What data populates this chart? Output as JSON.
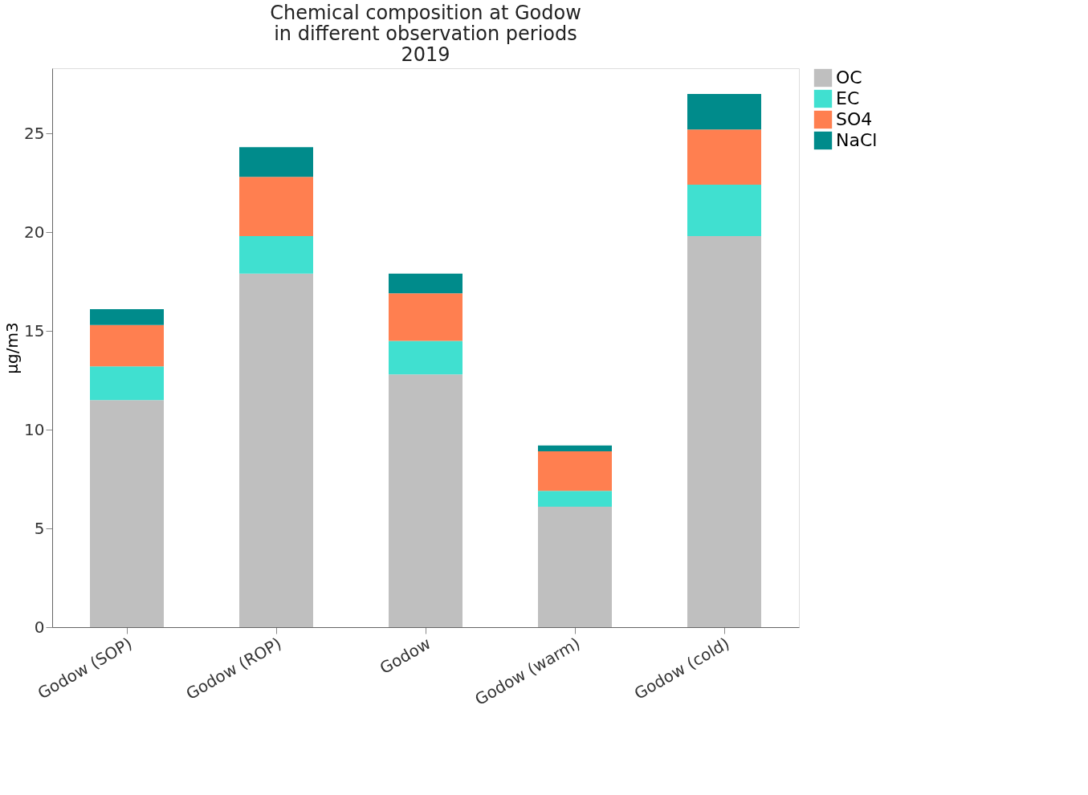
{
  "chart_data": {
    "type": "bar",
    "title": "Chemical composition at Godow\nin different observation periods\n2019",
    "ylabel": "µg/m3",
    "categories": [
      "Godow (SOP)",
      "Godow (ROP)",
      "Godow",
      "Godow (warm)",
      "Godow (cold)"
    ],
    "stacked": true,
    "series": [
      {
        "name": "OC",
        "color": "#bfbfbf",
        "values": [
          11.5,
          17.9,
          12.8,
          6.1,
          19.8
        ]
      },
      {
        "name": "EC",
        "color": "#40e0d0",
        "values": [
          1.7,
          1.9,
          1.7,
          0.8,
          2.6
        ]
      },
      {
        "name": "SO4",
        "color": "#ff7f50",
        "values": [
          2.1,
          3.0,
          2.4,
          2.0,
          2.8
        ]
      },
      {
        "name": "NaCl",
        "color": "#008b8b",
        "values": [
          0.8,
          1.5,
          1.0,
          0.3,
          1.8
        ]
      }
    ],
    "ylim": [
      0,
      28.3
    ],
    "yticks": [
      0,
      5,
      10,
      15,
      20,
      25
    ],
    "grid": false,
    "legend": "top right"
  }
}
